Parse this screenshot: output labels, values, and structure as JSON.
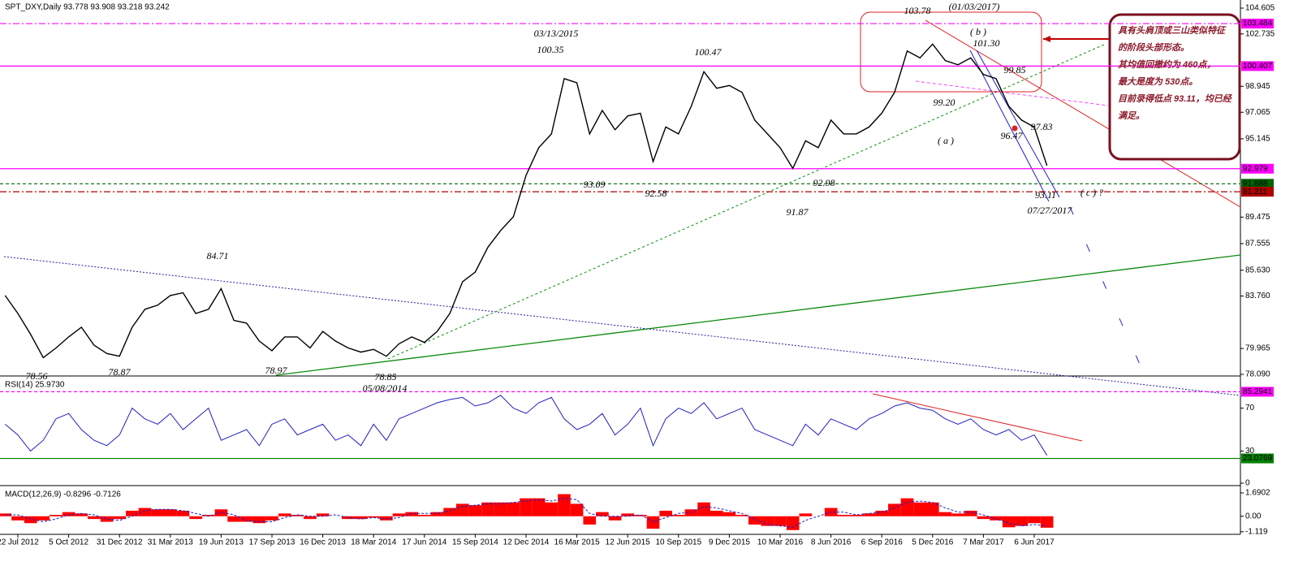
{
  "chart_data": [
    {
      "type": "line",
      "title": "SPT_DXY,Daily  93.778 93.908 93.218 93.242",
      "color": "#000000",
      "categories": [
        null,
        "22 Jul 2012",
        null,
        null,
        null,
        "5 Oct 2012",
        null,
        null,
        null,
        "31 Dec 2012",
        null,
        null,
        null,
        "31 Mar 2013",
        null,
        null,
        null,
        "19 Jun 2013",
        null,
        null,
        null,
        "17 Sep 2013",
        null,
        null,
        null,
        "16 Dec 2013",
        null,
        null,
        null,
        "18 Mar 2014",
        null,
        null,
        null,
        "17 Jun 2014",
        null,
        null,
        null,
        "15 Sep 2014",
        null,
        null,
        null,
        "12 Dec 2014",
        null,
        null,
        null,
        "16 Mar 2015",
        null,
        null,
        null,
        "12 Jun 2015",
        null,
        null,
        null,
        "10 Sep 2015",
        null,
        null,
        null,
        "9 Dec 2015",
        null,
        null,
        null,
        "10 Mar 2016",
        null,
        null,
        null,
        "8 Jun 2016",
        null,
        null,
        null,
        "6 Sep 2016",
        null,
        null,
        null,
        "5 Dec 2016",
        null,
        null,
        null,
        "7 Mar 2017",
        null,
        null,
        null,
        "6 Jun 2017",
        null
      ],
      "values": [
        83.8,
        82.5,
        81.0,
        79.3,
        80.0,
        80.8,
        81.5,
        80.2,
        79.6,
        79.4,
        81.5,
        82.8,
        83.1,
        83.8,
        84.0,
        82.5,
        82.8,
        84.3,
        82.0,
        81.8,
        80.5,
        79.8,
        80.8,
        80.8,
        80.0,
        81.2,
        80.5,
        80.0,
        79.7,
        79.9,
        79.4,
        80.3,
        80.8,
        80.4,
        81.2,
        82.5,
        84.8,
        85.5,
        87.3,
        88.5,
        89.5,
        92.5,
        94.5,
        95.5,
        99.5,
        99.2,
        95.5,
        97.2,
        95.8,
        96.8,
        97.0,
        93.5,
        96.0,
        95.5,
        97.5,
        100.0,
        98.8,
        99.0,
        98.5,
        96.5,
        95.5,
        94.5,
        93.0,
        95.0,
        94.5,
        96.5,
        95.5,
        95.5,
        96.0,
        97.0,
        98.5,
        101.5,
        101.0,
        102.0,
        100.8,
        100.5,
        101.0,
        99.8,
        99.5,
        97.5,
        96.5,
        96.0,
        93.2
      ],
      "ylim": [
        78.09,
        104.605
      ],
      "yticks": [
        104.605,
        102.735,
        98.945,
        97.065,
        95.145,
        89.475,
        87.555,
        {
          "value": 85.63,
          "label": "85.630"
        },
        {
          "value": 83.76,
          "label": "83.760"
        },
        79.965,
        {
          "value": 78.09,
          "label": "78.090"
        }
      ],
      "levels": [
        {
          "value": 103.484,
          "color": "#ff00ff",
          "dash": "dashdot"
        },
        {
          "value": 100.407,
          "color": "#ff00ff",
          "dash": "solid"
        },
        {
          "value": 92.979,
          "color": "#ff00ff",
          "dash": "solid"
        },
        {
          "value": 91.888,
          "color": "#006400",
          "dash": "dashed"
        },
        {
          "value": 91.311,
          "color": "#b00000",
          "dash": "dashdot"
        }
      ],
      "annotations": [
        {
          "text": "03/13/2015",
          "color": "#2a2ab0"
        },
        {
          "text": "100.35",
          "color": "#a040a0"
        },
        {
          "text": "100.47",
          "color": "#a040a0"
        },
        {
          "text": "103.78",
          "color": "#e02020"
        },
        {
          "text": "(01/03/2017)",
          "color": "#2a2ab0"
        },
        {
          "text": "( b )",
          "color": "#e02020"
        },
        {
          "text": "101.30",
          "color": "#a040a0"
        },
        {
          "text": "99.85",
          "color": "#a040a0"
        },
        {
          "text": "99.20",
          "color": "#a040a0"
        },
        {
          "text": "97.83",
          "color": "#a040a0"
        },
        {
          "text": "( a )",
          "color": "#e02020"
        },
        {
          "text": "96.47",
          "color": "#a040a0"
        },
        {
          "text": "93.09",
          "color": "#2a2ab0"
        },
        {
          "text": "92.58",
          "color": "#a040a0"
        },
        {
          "text": "92.98",
          "color": "#a040a0"
        },
        {
          "text": "91.87",
          "color": "#a040a0"
        },
        {
          "text": "93.11",
          "color": "#109010"
        },
        {
          "text": "( c ) ?",
          "color": "#e02020"
        },
        {
          "text": "07/27/2017",
          "color": "#2a2ab0"
        },
        {
          "text": "84.71",
          "color": "#a040a0"
        },
        {
          "text": "78.56",
          "color": "#109010"
        },
        {
          "text": "78.87",
          "color": "#2a2ab0"
        },
        {
          "text": "78.97",
          "color": "#2a2ab0"
        },
        {
          "text": "78.85",
          "color": "#109010"
        },
        {
          "text": "05/08/2014",
          "color": "#e02020"
        }
      ],
      "callout": [
        "具有头肩顶或三山类似特征",
        "的阶段头部形态。",
        "其均值回撤约为 460点，",
        "最大是度为 530点。",
        "目前录得低点 93.11，均已经",
        "满足。"
      ]
    },
    {
      "type": "line",
      "title": "RSI(14) 25.9730",
      "color": "#2020c0",
      "values": [
        55,
        45,
        30,
        40,
        60,
        65,
        50,
        40,
        35,
        45,
        70,
        60,
        55,
        65,
        50,
        60,
        70,
        40,
        45,
        50,
        35,
        55,
        60,
        45,
        50,
        55,
        40,
        45,
        35,
        55,
        40,
        60,
        65,
        70,
        75,
        78,
        80,
        72,
        75,
        82,
        70,
        65,
        75,
        80,
        60,
        50,
        55,
        65,
        45,
        55,
        70,
        35,
        60,
        70,
        65,
        75,
        60,
        65,
        70,
        50,
        45,
        40,
        35,
        55,
        45,
        60,
        55,
        50,
        60,
        65,
        72,
        75,
        70,
        68,
        60,
        55,
        60,
        50,
        45,
        50,
        40,
        45,
        26
      ],
      "ylim": [
        0,
        100
      ],
      "yticks": [
        70,
        30,
        0
      ],
      "levels": [
        {
          "value": 85.2941,
          "color": "#ff00ff",
          "dash": "dashed"
        },
        {
          "value": 23.0769,
          "color": "#008000",
          "dash": "solid"
        }
      ]
    },
    {
      "type": "bar",
      "title": "MACD(12,26,9) -0.8296 -0.7126",
      "color": "#ff0000",
      "signal_color": "#2020c0",
      "values": [
        0.2,
        -0.3,
        -0.5,
        -0.3,
        0.1,
        0.3,
        0.2,
        -0.2,
        -0.4,
        -0.2,
        0.4,
        0.6,
        0.5,
        0.5,
        0.4,
        -0.2,
        0.1,
        0.5,
        -0.4,
        -0.4,
        -0.5,
        -0.3,
        0.2,
        0.1,
        -0.2,
        0.2,
        0.0,
        -0.2,
        -0.2,
        -0.1,
        -0.3,
        0.2,
        0.3,
        0.1,
        0.3,
        0.6,
        0.9,
        0.8,
        1.0,
        1.0,
        1.0,
        1.3,
        1.3,
        1.0,
        1.6,
        0.9,
        -0.6,
        0.3,
        -0.3,
        0.2,
        0.1,
        -0.9,
        0.4,
        0.1,
        0.5,
        1.0,
        0.4,
        0.3,
        0.1,
        -0.6,
        -0.7,
        -0.7,
        -1.0,
        0.2,
        0.0,
        0.6,
        0.1,
        0.1,
        0.2,
        0.4,
        0.9,
        1.3,
        1.0,
        1.0,
        0.3,
        0.2,
        0.4,
        -0.2,
        -0.3,
        -0.8,
        -0.7,
        -0.5,
        -0.83
      ],
      "signal": [
        0.1,
        0.1,
        -0.2,
        -0.4,
        -0.2,
        0.1,
        0.2,
        0.1,
        -0.2,
        -0.3,
        0.0,
        0.4,
        0.5,
        0.5,
        0.4,
        0.2,
        0.0,
        0.3,
        0.1,
        -0.3,
        -0.4,
        -0.4,
        -0.1,
        0.1,
        0.0,
        0.0,
        0.1,
        -0.1,
        -0.2,
        -0.1,
        -0.2,
        -0.1,
        0.2,
        0.2,
        0.2,
        0.4,
        0.7,
        0.8,
        0.9,
        0.9,
        1.0,
        1.1,
        1.2,
        1.1,
        1.3,
        1.2,
        0.2,
        0.0,
        0.0,
        0.0,
        0.1,
        -0.4,
        -0.1,
        0.2,
        0.3,
        0.7,
        0.6,
        0.4,
        0.2,
        -0.2,
        -0.6,
        -0.7,
        -0.8,
        -0.3,
        0.0,
        0.3,
        0.3,
        0.1,
        0.2,
        0.3,
        0.6,
        1.0,
        1.1,
        1.0,
        0.6,
        0.3,
        0.3,
        0.1,
        -0.2,
        -0.5,
        -0.7,
        -0.6,
        -0.71
      ],
      "ylim": [
        -1.25,
        2.1
      ],
      "yticks": [
        1.6902,
        {
          "value": 0,
          "label": "0.00"
        },
        -1.119
      ]
    }
  ]
}
